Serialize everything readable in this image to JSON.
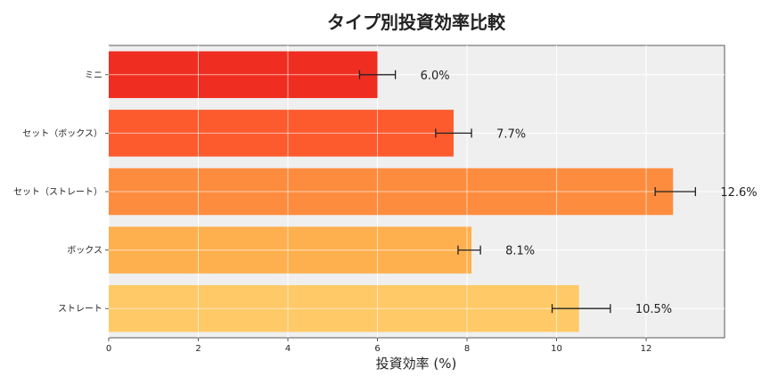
{
  "chart_data": {
    "type": "bar",
    "orientation": "horizontal",
    "title": "タイプ別投資効率比較",
    "xlabel": "投資効率 (%)",
    "ylabel": "",
    "categories": [
      "ミニ",
      "セット（ボックス）",
      "セット（ストレート）",
      "ボックス",
      "ストレート"
    ],
    "values": [
      6.0,
      7.7,
      12.6,
      8.1,
      10.5
    ],
    "error_low": [
      5.6,
      7.3,
      12.2,
      7.8,
      9.9
    ],
    "error_high": [
      6.4,
      8.1,
      13.1,
      8.3,
      11.2
    ],
    "data_labels": [
      "6.0%",
      "7.7%",
      "12.6%",
      "8.1%",
      "10.5%"
    ],
    "colors": [
      "#ef2e21",
      "#fd5a2e",
      "#fe8c3e",
      "#feb04e",
      "#fec966"
    ],
    "xlim": [
      0,
      13.75
    ],
    "xticks": [
      0,
      2,
      4,
      6,
      8,
      10,
      12
    ],
    "grid": true,
    "plot_background": "#efefef"
  }
}
